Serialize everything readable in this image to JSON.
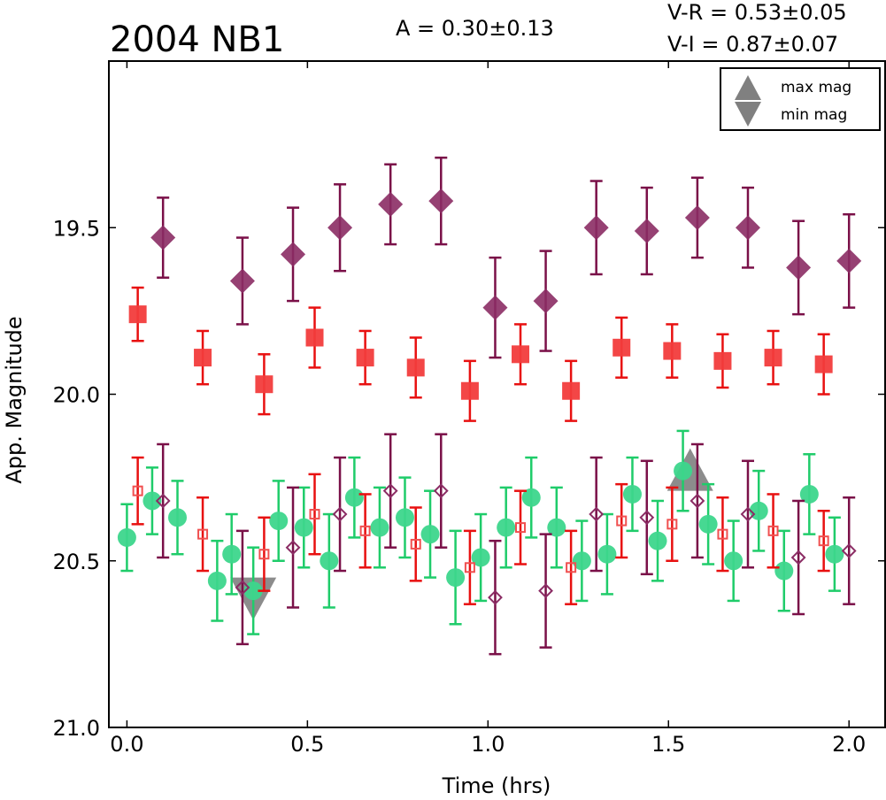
{
  "chart_data": {
    "type": "scatter",
    "title": "2004 NB1",
    "annotations": {
      "amplitude": "A  = 0.30±0.13",
      "vr": "V-R = 0.53±0.05",
      "vi": "V-I  = 0.87±0.07"
    },
    "xlabel": "Time (hrs)",
    "ylabel": "App. Magnitude",
    "xlim": [
      -0.05,
      2.1
    ],
    "ylim": [
      21.0,
      19.0
    ],
    "y_inverted": true,
    "xticks": [
      0.0,
      0.5,
      1.0,
      1.5,
      2.0
    ],
    "xtick_labels": [
      "0.0",
      "0.5",
      "1.0",
      "1.5",
      "2.0"
    ],
    "yticks": [
      19.5,
      20.0,
      20.5,
      21.0
    ],
    "ytick_labels": [
      "19.5",
      "20.0",
      "20.5",
      "21.0"
    ],
    "grid": false,
    "legend": {
      "placement": "top-right",
      "entries": [
        {
          "label": "max mag",
          "marker": "triangle-up",
          "color": "#808080"
        },
        {
          "label": "min mag",
          "marker": "triangle-down",
          "color": "#808080"
        }
      ]
    },
    "series": [
      {
        "marker": "diamond-filled",
        "color": "#8b2c64",
        "errcolor": "#7a1048",
        "x": [
          0.1,
          0.32,
          0.46,
          0.59,
          0.73,
          0.87,
          1.02,
          1.16,
          1.3,
          1.44,
          1.58,
          1.72,
          1.86,
          2.0
        ],
        "y": [
          19.53,
          19.66,
          19.58,
          19.5,
          19.43,
          19.42,
          19.74,
          19.72,
          19.5,
          19.51,
          19.47,
          19.5,
          19.62,
          19.6
        ],
        "err": [
          0.12,
          0.13,
          0.14,
          0.13,
          0.12,
          0.13,
          0.15,
          0.15,
          0.14,
          0.13,
          0.12,
          0.12,
          0.14,
          0.14
        ]
      },
      {
        "marker": "square-filled",
        "color": "#f23c3c",
        "errcolor": "#e81010",
        "x": [
          0.03,
          0.21,
          0.38,
          0.52,
          0.66,
          0.8,
          0.95,
          1.09,
          1.23,
          1.37,
          1.51,
          1.65,
          1.79,
          1.93
        ],
        "y": [
          19.76,
          19.89,
          19.97,
          19.83,
          19.89,
          19.92,
          19.99,
          19.88,
          19.99,
          19.86,
          19.87,
          19.9,
          19.89,
          19.91
        ],
        "err": [
          0.08,
          0.08,
          0.09,
          0.09,
          0.08,
          0.09,
          0.09,
          0.09,
          0.09,
          0.09,
          0.08,
          0.08,
          0.08,
          0.09
        ]
      },
      {
        "marker": "circle-filled",
        "color": "#3dd68c",
        "errcolor": "#1fcc6a",
        "x": [
          0.0,
          0.07,
          0.14,
          0.25,
          0.29,
          0.35,
          0.42,
          0.49,
          0.56,
          0.63,
          0.7,
          0.77,
          0.84,
          0.91,
          0.98,
          1.05,
          1.12,
          1.19,
          1.26,
          1.33,
          1.4,
          1.47,
          1.54,
          1.61,
          1.68,
          1.75,
          1.82,
          1.89,
          1.96
        ],
        "y": [
          20.43,
          20.32,
          20.37,
          20.56,
          20.48,
          20.59,
          20.38,
          20.4,
          20.5,
          20.31,
          20.4,
          20.37,
          20.42,
          20.55,
          20.49,
          20.4,
          20.31,
          20.4,
          20.5,
          20.48,
          20.3,
          20.44,
          20.23,
          20.39,
          20.5,
          20.35,
          20.53,
          20.3,
          20.48
        ],
        "err": [
          0.1,
          0.1,
          0.11,
          0.12,
          0.12,
          0.13,
          0.12,
          0.12,
          0.14,
          0.12,
          0.12,
          0.12,
          0.13,
          0.14,
          0.13,
          0.12,
          0.12,
          0.12,
          0.12,
          0.12,
          0.11,
          0.12,
          0.12,
          0.12,
          0.12,
          0.12,
          0.12,
          0.12,
          0.11
        ]
      },
      {
        "marker": "square-open",
        "color": "#f05050",
        "errcolor": "#e81010",
        "x": [
          0.03,
          0.21,
          0.38,
          0.52,
          0.66,
          0.8,
          0.95,
          1.09,
          1.23,
          1.37,
          1.51,
          1.65,
          1.79,
          1.93
        ],
        "y": [
          20.29,
          20.42,
          20.48,
          20.36,
          20.41,
          20.45,
          20.52,
          20.4,
          20.52,
          20.38,
          20.39,
          20.42,
          20.41,
          20.44
        ],
        "err": [
          0.1,
          0.11,
          0.11,
          0.12,
          0.11,
          0.11,
          0.11,
          0.11,
          0.11,
          0.11,
          0.11,
          0.11,
          0.11,
          0.09
        ]
      },
      {
        "marker": "diamond-open",
        "color": "#8b2c64",
        "errcolor": "#7a1048",
        "x": [
          0.1,
          0.32,
          0.46,
          0.59,
          0.73,
          0.87,
          1.02,
          1.16,
          1.3,
          1.44,
          1.58,
          1.72,
          1.86,
          2.0
        ],
        "y": [
          20.32,
          20.58,
          20.46,
          20.36,
          20.29,
          20.29,
          20.61,
          20.59,
          20.36,
          20.37,
          20.32,
          20.36,
          20.49,
          20.47
        ],
        "err": [
          0.17,
          0.17,
          0.18,
          0.17,
          0.17,
          0.17,
          0.17,
          0.17,
          0.17,
          0.17,
          0.17,
          0.16,
          0.17,
          0.16
        ]
      }
    ],
    "extrema": [
      {
        "type": "min",
        "x": 0.35,
        "y": 20.55,
        "color": "#808080"
      },
      {
        "type": "max",
        "x": 1.56,
        "y": 20.29,
        "color": "#808080"
      }
    ]
  }
}
